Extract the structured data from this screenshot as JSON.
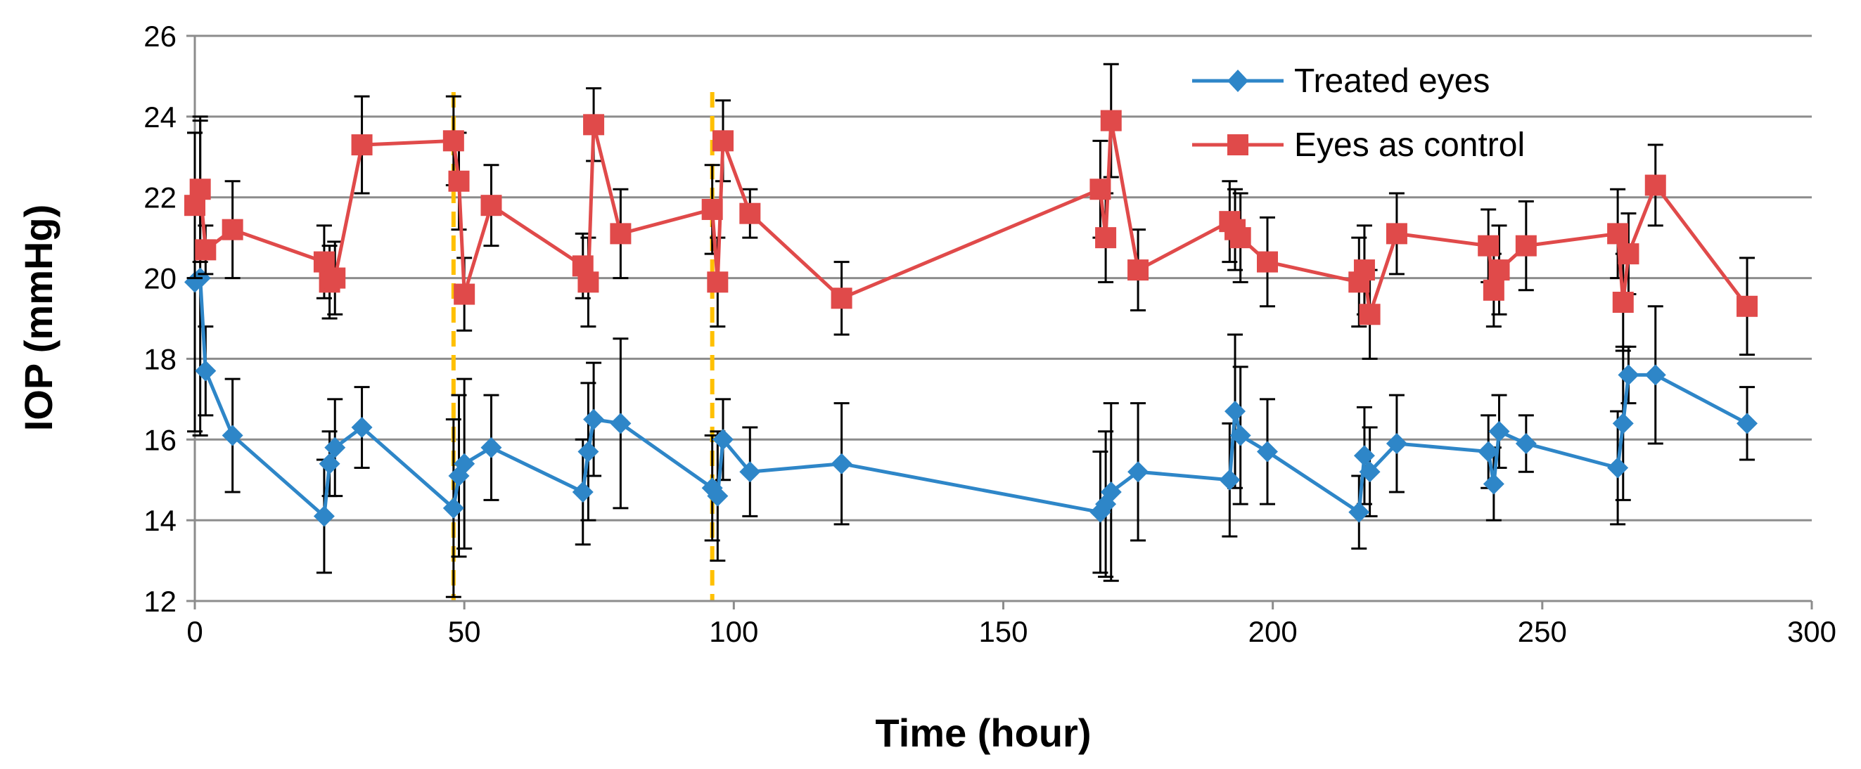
{
  "chart_data": {
    "type": "line",
    "title": "",
    "xlabel": "Time (hour)",
    "ylabel": "IOP (mmHg)",
    "xlim": [
      0,
      300
    ],
    "ylim": [
      12,
      26
    ],
    "xticks": [
      0,
      50,
      100,
      150,
      200,
      250,
      300
    ],
    "yticks": [
      12,
      14,
      16,
      18,
      20,
      22,
      24,
      26
    ],
    "xtick_labels": [
      "0",
      "50",
      "100",
      "150",
      "200",
      "250",
      "300"
    ],
    "ytick_labels": [
      "12",
      "14",
      "16",
      "18",
      "20",
      "22",
      "24",
      "26"
    ],
    "grid": "horizontal",
    "legend_position": "top-right",
    "reference_lines": [
      {
        "x": 48,
        "color": "#FFC000",
        "style": "dashed"
      },
      {
        "x": 96,
        "color": "#FFC000",
        "style": "dashed"
      }
    ],
    "series": [
      {
        "name": "Treated eyes",
        "color": "#2E86C8",
        "marker": "diamond",
        "x": [
          0,
          1,
          2,
          7,
          24,
          25,
          26,
          31,
          48,
          49,
          50,
          55,
          72,
          73,
          74,
          79,
          96,
          97,
          98,
          103,
          120,
          168,
          169,
          170,
          175,
          192,
          193,
          194,
          199,
          216,
          217,
          218,
          223,
          240,
          241,
          242,
          247,
          264,
          265,
          266,
          271,
          288
        ],
        "y": [
          19.9,
          20.0,
          17.7,
          16.1,
          14.1,
          15.4,
          15.8,
          16.3,
          14.3,
          15.1,
          15.4,
          15.8,
          14.7,
          15.7,
          16.5,
          16.4,
          14.8,
          14.6,
          16.0,
          15.2,
          15.4,
          14.2,
          14.4,
          14.7,
          15.2,
          15.0,
          16.7,
          16.1,
          15.7,
          14.2,
          15.6,
          15.2,
          15.9,
          15.7,
          14.9,
          16.2,
          15.9,
          15.3,
          16.4,
          17.6,
          17.6,
          16.4
        ],
        "err": [
          3.7,
          3.9,
          1.1,
          1.4,
          1.4,
          0.8,
          1.2,
          1.0,
          2.2,
          2.0,
          2.1,
          1.3,
          1.3,
          1.7,
          1.4,
          2.1,
          1.3,
          1.6,
          1.0,
          1.1,
          1.5,
          1.5,
          1.8,
          2.2,
          1.7,
          1.4,
          1.9,
          1.7,
          1.3,
          0.9,
          1.2,
          1.1,
          1.2,
          0.9,
          0.9,
          0.9,
          0.7,
          1.4,
          1.9,
          0.7,
          1.7,
          0.9
        ]
      },
      {
        "name": "Eyes as control",
        "color": "#E04A4A",
        "marker": "square",
        "x": [
          0,
          1,
          2,
          7,
          24,
          25,
          26,
          31,
          48,
          49,
          50,
          55,
          72,
          73,
          74,
          79,
          96,
          97,
          98,
          103,
          120,
          168,
          169,
          170,
          175,
          192,
          193,
          194,
          199,
          216,
          217,
          218,
          223,
          240,
          241,
          242,
          247,
          264,
          265,
          266,
          271,
          288
        ],
        "y": [
          21.8,
          22.2,
          20.7,
          21.2,
          20.4,
          19.9,
          20.0,
          23.3,
          23.4,
          22.4,
          19.6,
          21.8,
          20.3,
          19.9,
          23.8,
          21.1,
          21.7,
          19.9,
          23.4,
          21.6,
          19.5,
          22.2,
          21.0,
          23.9,
          20.2,
          21.4,
          21.2,
          21.0,
          20.4,
          19.9,
          20.2,
          19.1,
          21.1,
          20.8,
          19.7,
          20.2,
          20.8,
          21.1,
          19.4,
          20.6,
          22.3,
          19.3
        ],
        "err": [
          1.8,
          1.8,
          0.6,
          1.2,
          0.9,
          0.9,
          0.9,
          1.2,
          1.1,
          1.2,
          0.9,
          1.0,
          0.8,
          1.1,
          0.9,
          1.1,
          1.1,
          1.1,
          1.0,
          0.6,
          0.9,
          1.2,
          1.1,
          1.4,
          1.0,
          1.0,
          1.0,
          1.1,
          1.1,
          1.1,
          1.1,
          1.1,
          1.0,
          0.9,
          0.9,
          1.1,
          1.1,
          1.1,
          1.2,
          1.0,
          1.0,
          1.2
        ]
      }
    ]
  }
}
